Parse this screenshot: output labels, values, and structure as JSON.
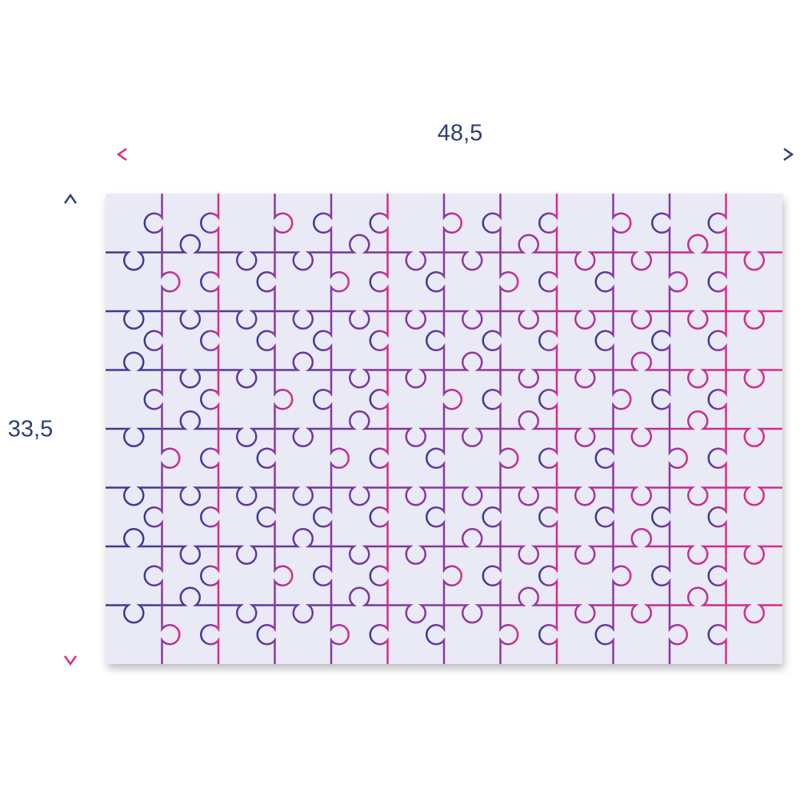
{
  "dimensions": {
    "width_label": "48,5",
    "height_label": "33,5"
  }
}
